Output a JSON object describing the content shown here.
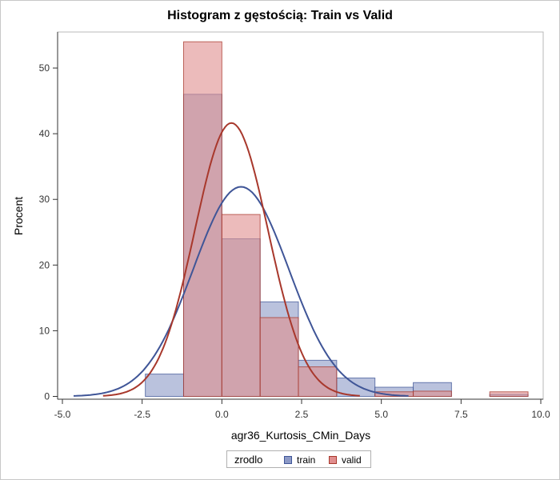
{
  "chart_data": {
    "type": "bar",
    "title": "Histogram z gęstością: Train vs Valid",
    "xlabel": "agr36_Kurtosis_CMin_Days",
    "ylabel": "Procent",
    "xlim": [
      -5.0,
      10.0
    ],
    "ylim": [
      0,
      55
    ],
    "xticks": [
      "-5.0",
      "-2.5",
      "0.0",
      "2.5",
      "5.0",
      "7.5",
      "10.0"
    ],
    "xtick_values": [
      -5.0,
      -2.5,
      0.0,
      2.5,
      5.0,
      7.5,
      10.0
    ],
    "yticks": [
      "0",
      "10",
      "20",
      "30",
      "40",
      "50"
    ],
    "ytick_values": [
      0,
      10,
      20,
      30,
      40,
      50
    ],
    "bin_edges": [
      -2.4,
      -1.2,
      0.0,
      1.2,
      2.4,
      3.6,
      4.8,
      6.0,
      7.2,
      8.4,
      9.6
    ],
    "series": [
      {
        "name": "train",
        "color": "#8c99c6",
        "values": [
          3.4,
          46.0,
          24.0,
          14.4,
          5.5,
          2.8,
          1.4,
          2.1,
          0.0,
          0.3
        ],
        "density": {
          "mean": 0.6,
          "sd": 1.5,
          "color": "#3f5597"
        }
      },
      {
        "name": "valid",
        "color": "#e08e8e",
        "values": [
          0.0,
          54.0,
          27.7,
          12.0,
          4.5,
          0.0,
          0.7,
          0.8,
          0.0,
          0.7
        ],
        "density": {
          "mean": 0.3,
          "sd": 1.15,
          "color": "#a8382c"
        }
      }
    ],
    "legend": {
      "title": "zrodlo",
      "position": "bottom"
    },
    "grid": false
  }
}
